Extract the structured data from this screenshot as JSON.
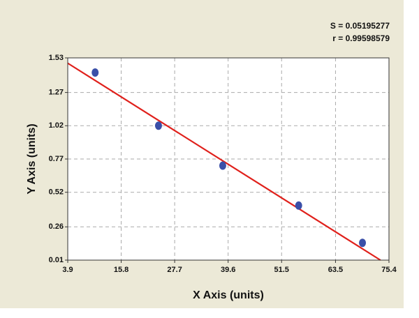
{
  "chart_data": {
    "type": "scatter",
    "annotations": [
      "S = 0.05195277",
      "r = 0.99598579"
    ],
    "x_label": "X Axis (units)",
    "y_label": "Y Axis (units)",
    "series": [
      {
        "color": "#3a4fa8",
        "x": [
          10.0,
          24.1,
          38.4,
          55.3,
          69.5
        ],
        "values": [
          1.42,
          1.02,
          0.72,
          0.42,
          0.14
        ]
      }
    ],
    "fit_line": {
      "color": "#e0201b",
      "x": [
        3.9,
        73.5
      ],
      "values": [
        1.49,
        0.01
      ]
    },
    "xlim": [
      3.9,
      75.4
    ],
    "xticks": [
      3.9,
      15.8,
      27.7,
      39.6,
      51.5,
      63.5,
      75.4
    ],
    "ylim": [
      0.01,
      1.53
    ],
    "yticks": [
      0.01,
      0.26,
      0.52,
      0.77,
      1.02,
      1.27,
      1.53
    ],
    "grid": true
  }
}
